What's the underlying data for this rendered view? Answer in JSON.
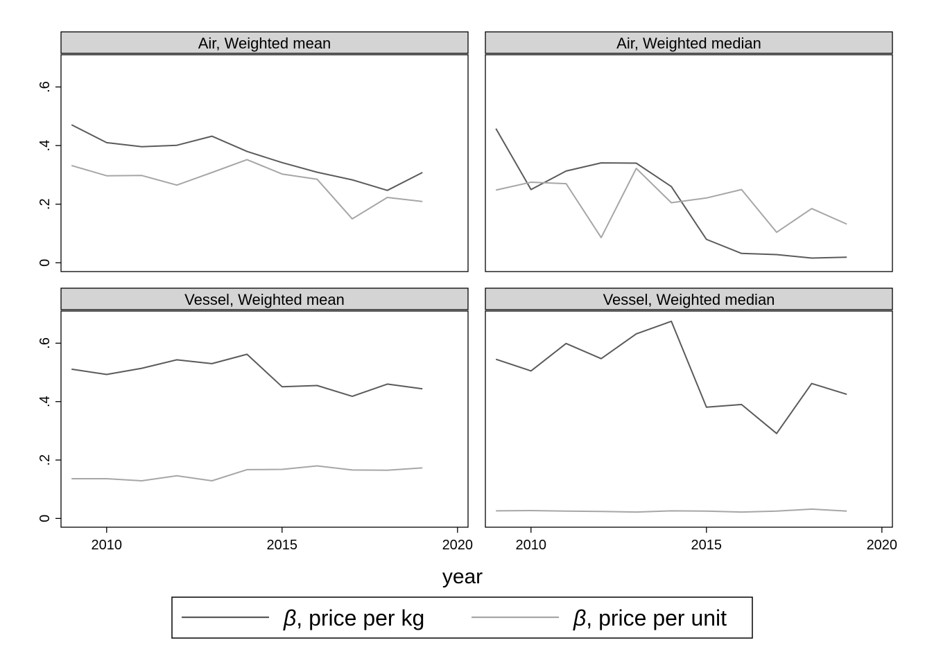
{
  "chart_data": {
    "type": "line",
    "xlabel": "year",
    "x": [
      2009,
      2010,
      2011,
      2012,
      2013,
      2014,
      2015,
      2016,
      2017,
      2018,
      2019
    ],
    "xlim": [
      2008.7,
      2020.3
    ],
    "ylim": [
      -0.03,
      0.71
    ],
    "x_ticks": [
      "2010",
      "2015",
      "2020"
    ],
    "y_ticks": [
      "0",
      ".2",
      ".4",
      ".6"
    ],
    "legend": {
      "position": "bottom",
      "entries": [
        {
          "symbol": "β",
          "label": ", price per kg"
        },
        {
          "symbol": "β",
          "label": ", price per unit"
        }
      ]
    },
    "colors": {
      "per_kg": "#5a5a5a",
      "per_unit": "#a6a6a6",
      "strip": "#d4d4d4"
    },
    "panels": [
      {
        "title": "Air, Weighted mean",
        "series": [
          {
            "name": "β, price per kg",
            "values": [
              0.471,
              0.41,
              0.396,
              0.401,
              0.432,
              0.38,
              0.342,
              0.309,
              0.283,
              0.247,
              0.308
            ]
          },
          {
            "name": "β, price per unit",
            "values": [
              0.332,
              0.297,
              0.298,
              0.265,
              0.308,
              0.352,
              0.303,
              0.285,
              0.15,
              0.223,
              0.209
            ]
          }
        ]
      },
      {
        "title": "Air, Weighted median",
        "series": [
          {
            "name": "β, price per kg",
            "values": [
              0.458,
              0.25,
              0.313,
              0.341,
              0.34,
              0.26,
              0.08,
              0.032,
              0.028,
              0.016,
              0.019
            ]
          },
          {
            "name": "β, price per unit",
            "values": [
              0.248,
              0.275,
              0.27,
              0.086,
              0.322,
              0.205,
              0.221,
              0.25,
              0.104,
              0.185,
              0.132
            ]
          }
        ]
      },
      {
        "title": "Vessel, Weighted mean",
        "series": [
          {
            "name": "β, price per kg",
            "values": [
              0.511,
              0.493,
              0.514,
              0.543,
              0.53,
              0.562,
              0.451,
              0.455,
              0.418,
              0.46,
              0.444
            ]
          },
          {
            "name": "β, price per unit",
            "values": [
              0.136,
              0.136,
              0.129,
              0.146,
              0.129,
              0.167,
              0.168,
              0.18,
              0.166,
              0.165,
              0.173
            ]
          }
        ]
      },
      {
        "title": "Vessel, Weighted median",
        "series": [
          {
            "name": "β, price per kg",
            "values": [
              0.545,
              0.505,
              0.599,
              0.547,
              0.632,
              0.675,
              0.381,
              0.39,
              0.291,
              0.462,
              0.425
            ]
          },
          {
            "name": "β, price per unit",
            "values": [
              0.026,
              0.027,
              0.025,
              0.024,
              0.022,
              0.026,
              0.025,
              0.022,
              0.025,
              0.032,
              0.025
            ]
          }
        ]
      }
    ]
  }
}
